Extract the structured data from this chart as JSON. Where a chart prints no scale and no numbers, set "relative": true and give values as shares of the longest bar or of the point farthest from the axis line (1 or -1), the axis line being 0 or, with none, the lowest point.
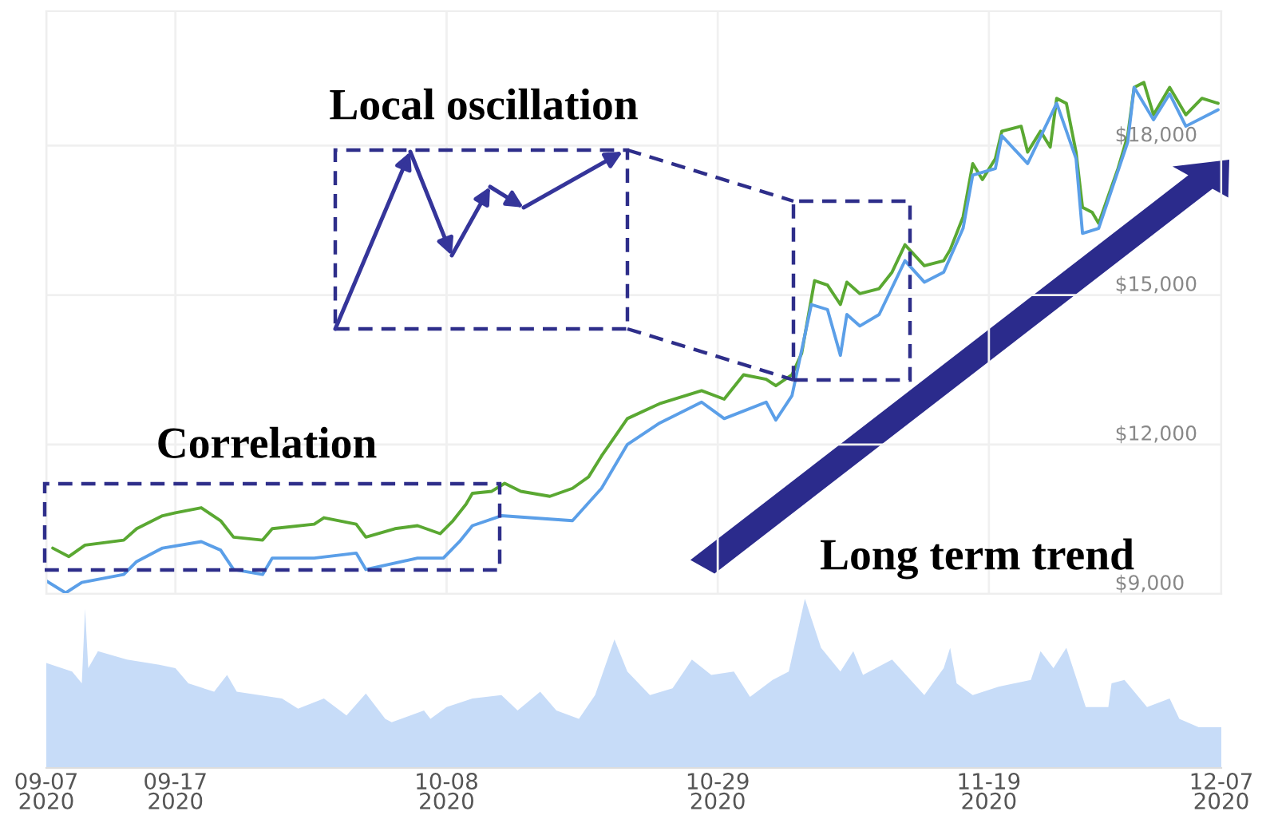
{
  "chart_data": [
    {
      "type": "line",
      "xlim": [
        "2020-09-07",
        "2020-12-07"
      ],
      "xticks": [
        {
          "value": "2020-09-07",
          "label": null
        },
        {
          "value": "2020-09-17",
          "label": null
        },
        {
          "value": "2020-10-08",
          "label": null
        },
        {
          "value": "2020-10-29",
          "label": null
        },
        {
          "value": "2020-11-19",
          "label": null
        },
        {
          "value": "2020-12-07",
          "label": null
        }
      ],
      "ylim": [
        9000,
        20700
      ],
      "yticks": [
        {
          "value": 9000,
          "label": "$9,000"
        },
        {
          "value": 12000,
          "label": "$12,000"
        },
        {
          "value": 15000,
          "label": "$15,000"
        },
        {
          "value": 18000,
          "label": "$18,000"
        }
      ],
      "grid": true,
      "tick_labels": "y",
      "annotations": [
        "Local oscillation",
        "Correlation",
        "Long term trend"
      ],
      "series": [
        {
          "color": "#5aa832",
          "x": [
            "2020-09-07T12:00",
            "2020-09-08T18:00",
            "2020-09-10",
            "2020-09-13",
            "2020-09-14",
            "2020-09-16",
            "2020-09-17",
            "2020-09-19",
            "2020-09-20T12:00",
            "2020-09-21T12:00",
            "2020-09-23T18:00",
            "2020-09-24T12:00",
            "2020-09-27T18:00",
            "2020-09-28T12:00",
            "2020-10-01",
            "2020-10-01T18:00",
            "2020-10-04",
            "2020-10-05T18:00",
            "2020-10-07T12:00",
            "2020-10-08T12:00",
            "2020-10-09T12:00",
            "2020-10-10",
            "2020-10-11T12:00",
            "2020-10-12T12:00",
            "2020-10-13T18:00",
            "2020-10-16",
            "2020-10-17T18:00",
            "2020-10-19",
            "2020-10-20",
            "2020-10-22",
            "2020-10-24T12:00",
            "2020-10-27T18:00",
            "2020-10-29T12:00",
            "2020-10-31",
            "2020-11-01T18:00",
            "2020-11-02T12:00",
            "2020-11-03T18:00",
            "2020-11-04T12:00",
            "2020-11-05T12:00",
            "2020-11-06T12:00",
            "2020-11-07T12:00",
            "2020-11-08",
            "2020-11-09",
            "2020-11-10T12:00",
            "2020-11-11T12:00",
            "2020-11-12T12:00",
            "2020-11-14",
            "2020-11-15T12:00",
            "2020-11-16",
            "2020-11-17",
            "2020-11-17T18:00",
            "2020-11-18T12:00",
            "2020-11-19T12:00",
            "2020-11-20",
            "2020-11-21T12:00",
            "2020-11-22",
            "2020-11-23",
            "2020-11-23T18:00",
            "2020-11-24T06:00",
            "2020-11-25",
            "2020-11-25T18:00",
            "2020-11-26T06:00",
            "2020-11-27",
            "2020-11-27T12:00",
            "2020-11-28T06:00",
            "2020-11-29",
            "2020-11-29T18:00",
            "2020-11-30T06:00",
            "2020-12-01",
            "2020-12-01T18:00",
            "2020-12-03",
            "2020-12-04T06:00",
            "2020-12-05T12:00",
            "2020-12-06T18:00"
          ],
          "values": [
            9920,
            9750,
            9980,
            10080,
            10310,
            10570,
            10630,
            10730,
            10470,
            10140,
            10080,
            10310,
            10400,
            10530,
            10400,
            10140,
            10310,
            10370,
            10210,
            10470,
            10800,
            11020,
            11060,
            11220,
            11060,
            10960,
            11120,
            11350,
            11770,
            12520,
            12820,
            13080,
            12910,
            13400,
            13310,
            13180,
            13400,
            13830,
            15290,
            15200,
            14810,
            15260,
            15030,
            15130,
            15460,
            16010,
            15590,
            15690,
            15910,
            16570,
            17640,
            17320,
            17740,
            18290,
            18390,
            17870,
            18290,
            17970,
            18950,
            18850,
            17870,
            16760,
            16660,
            16440,
            16990,
            17540,
            18200,
            19170,
            19270,
            18620,
            19170,
            18620,
            18950,
            18850
          ]
        },
        {
          "color": "#5b9fe8",
          "x": [
            "2020-09-07",
            "2020-09-08T12:00",
            "2020-09-09T18:00",
            "2020-09-13",
            "2020-09-14",
            "2020-09-16",
            "2020-09-19",
            "2020-09-20T12:00",
            "2020-09-21T12:00",
            "2020-09-23T18:00",
            "2020-09-24T12:00",
            "2020-09-27T18:00",
            "2020-10-01",
            "2020-10-01T18:00",
            "2020-10-05T18:00",
            "2020-10-07T18:00",
            "2020-10-09",
            "2020-10-10",
            "2020-10-12T06:00",
            "2020-10-17T18:00",
            "2020-10-20",
            "2020-10-22",
            "2020-10-24T12:00",
            "2020-10-27T18:00",
            "2020-10-29T12:00",
            "2020-11-01T18:00",
            "2020-11-02T12:00",
            "2020-11-03T18:00",
            "2020-11-05T06:00",
            "2020-11-06T12:00",
            "2020-11-07T12:00",
            "2020-11-08",
            "2020-11-09",
            "2020-11-10T12:00",
            "2020-11-12T12:00",
            "2020-11-14",
            "2020-11-15T12:00",
            "2020-11-17",
            "2020-11-17T18:00",
            "2020-11-19T12:00",
            "2020-11-20",
            "2020-11-22",
            "2020-11-24T06:00",
            "2020-11-25T18:00",
            "2020-11-26T06:00",
            "2020-11-27T12:00",
            "2020-11-29T18:00",
            "2020-11-30T06:00",
            "2020-12-01T18:00",
            "2020-12-03",
            "2020-12-04T06:00",
            "2020-12-06T18:00"
          ],
          "values": [
            9260,
            9020,
            9230,
            9390,
            9650,
            9920,
            10050,
            9880,
            9490,
            9390,
            9720,
            9720,
            9820,
            9490,
            9720,
            9720,
            10050,
            10370,
            10570,
            10470,
            11120,
            12000,
            12430,
            12850,
            12520,
            12850,
            12490,
            12980,
            14810,
            14710,
            13790,
            14610,
            14380,
            14610,
            15690,
            15260,
            15460,
            16340,
            17410,
            17540,
            18200,
            17640,
            18850,
            17740,
            16240,
            16340,
            18070,
            19170,
            18520,
            19040,
            18390,
            18720
          ]
        }
      ]
    },
    {
      "type": "area",
      "relative": true,
      "color": "#c7dcf8",
      "xlim": [
        "2020-09-07",
        "2020-12-07"
      ],
      "xticks": [
        {
          "value": "2020-09-07",
          "label": "09-07\n2020"
        },
        {
          "value": "2020-09-17",
          "label": "09-17\n2020"
        },
        {
          "value": "2020-10-08",
          "label": "10-08\n2020"
        },
        {
          "value": "2020-10-29",
          "label": "10-29\n2020"
        },
        {
          "value": "2020-11-19",
          "label": "11-19\n2020"
        },
        {
          "value": "2020-12-07",
          "label": "12-07\n2020"
        }
      ],
      "tick_labels": "x",
      "x": [
        "2020-09-07",
        "2020-09-09",
        "2020-09-09T18:00",
        "2020-09-10",
        "2020-09-10T06:00",
        "2020-09-11",
        "2020-09-13T06:00",
        "2020-09-15T18:00",
        "2020-09-17",
        "2020-09-18",
        "2020-09-20",
        "2020-09-21",
        "2020-09-21T18:00",
        "2020-09-23T12:00",
        "2020-09-25T06:00",
        "2020-09-26T12:00",
        "2020-09-28T12:00",
        "2020-09-30T06:00",
        "2020-10-01T18:00",
        "2020-10-03T06:00",
        "2020-10-03T18:00",
        "2020-10-06T06:00",
        "2020-10-06T18:00",
        "2020-10-08",
        "2020-10-10",
        "2020-10-12T06:00",
        "2020-10-13T12:00",
        "2020-10-15T06:00",
        "2020-10-16T12:00",
        "2020-10-18T06:00",
        "2020-10-19T12:00",
        "2020-10-21",
        "2020-10-22",
        "2020-10-23T18:00",
        "2020-10-25T12:00",
        "2020-10-27",
        "2020-10-28T12:00",
        "2020-10-30T06:00",
        "2020-10-31T12:00",
        "2020-11-02T06:00",
        "2020-11-03T12:00",
        "2020-11-04T18:00",
        "2020-11-06",
        "2020-11-07T12:00",
        "2020-11-08T12:00",
        "2020-11-09T06:00",
        "2020-11-11T12:00",
        "2020-11-14",
        "2020-11-15T12:00",
        "2020-11-16",
        "2020-11-16T12:00",
        "2020-11-17T18:00",
        "2020-11-19T18:00",
        "2020-11-22T06:00",
        "2020-11-23",
        "2020-11-24",
        "2020-11-25",
        "2020-11-26T12:00",
        "2020-11-28T06:00",
        "2020-11-28T12:00",
        "2020-11-29T12:00",
        "2020-12-01T06:00",
        "2020-12-03",
        "2020-12-03T18:00",
        "2020-12-05T06:00",
        "2020-12-07"
      ],
      "values": [
        0.62,
        0.57,
        0.5,
        0.94,
        0.59,
        0.69,
        0.64,
        0.61,
        0.59,
        0.5,
        0.45,
        0.55,
        0.45,
        0.43,
        0.41,
        0.35,
        0.41,
        0.31,
        0.44,
        0.29,
        0.27,
        0.34,
        0.29,
        0.36,
        0.41,
        0.43,
        0.34,
        0.45,
        0.34,
        0.29,
        0.43,
        0.76,
        0.57,
        0.43,
        0.47,
        0.64,
        0.55,
        0.57,
        0.42,
        0.52,
        0.57,
        1,
        0.71,
        0.57,
        0.69,
        0.55,
        0.64,
        0.43,
        0.59,
        0.71,
        0.5,
        0.43,
        0.48,
        0.52,
        0.69,
        0.59,
        0.71,
        0.36,
        0.36,
        0.5,
        0.52,
        0.36,
        0.41,
        0.29,
        0.24,
        0.24
      ]
    }
  ]
}
